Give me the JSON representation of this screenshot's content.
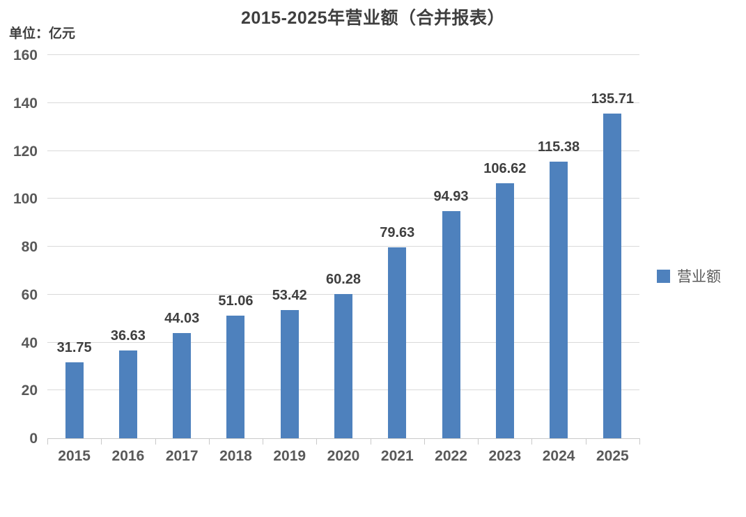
{
  "title": "2015-2025年营业额（合并报表）",
  "unit_label": "单位：亿元",
  "legend": {
    "label": "营业额"
  },
  "colors": {
    "bar": "#4e81bd",
    "grid": "#d9d9d9",
    "axis": "#c9c9c9",
    "title_text": "#3f3f3f",
    "tick_text": "#595959",
    "value_label_text": "#3f3f3f"
  },
  "chart_data": {
    "type": "bar",
    "title": "2015-2025年营业额（合并报表）",
    "xlabel": "",
    "ylabel": "单位：亿元",
    "categories": [
      "2015",
      "2016",
      "2017",
      "2018",
      "2019",
      "2020",
      "2021",
      "2022",
      "2023",
      "2024",
      "2025"
    ],
    "series": [
      {
        "name": "营业额",
        "values": [
          31.75,
          36.63,
          44.03,
          51.06,
          53.42,
          60.28,
          79.63,
          94.93,
          106.62,
          115.38,
          135.71
        ]
      }
    ],
    "ylim": [
      0,
      160
    ],
    "ytick_step": 20,
    "grid": true,
    "value_labels": true,
    "legend_position": "right"
  }
}
